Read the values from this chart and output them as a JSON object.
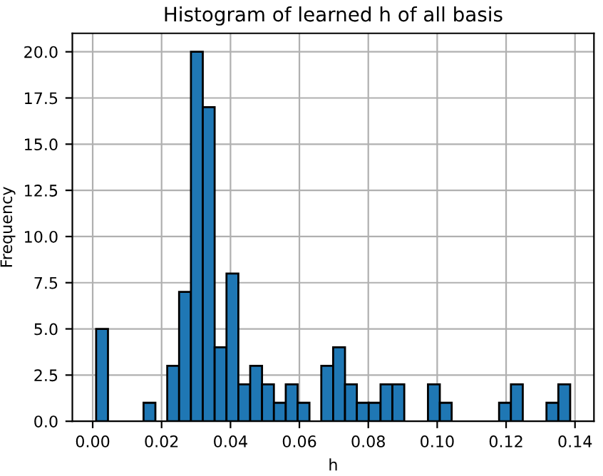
{
  "chart_data": {
    "type": "histogram",
    "title": "Histogram of learned h of all basis",
    "xlabel": "h",
    "ylabel": "Frequency",
    "bins": [
      0.001,
      0.00444,
      0.00788,
      0.01132,
      0.01476,
      0.0182,
      0.02164,
      0.02508,
      0.02852,
      0.03196,
      0.0354,
      0.03884,
      0.04228,
      0.04572,
      0.04916,
      0.0526,
      0.05604,
      0.05948,
      0.06292,
      0.06636,
      0.0698,
      0.07324,
      0.07668,
      0.08012,
      0.08356,
      0.087,
      0.09044,
      0.09388,
      0.09732,
      0.10076,
      0.1042,
      0.10764,
      0.11108,
      0.11452,
      0.11796,
      0.1214,
      0.12484,
      0.12828,
      0.13172,
      0.13516,
      0.1386
    ],
    "values": [
      5,
      0,
      0,
      0,
      1,
      0,
      3,
      7,
      20,
      17,
      4,
      8,
      2,
      3,
      2,
      1,
      2,
      1,
      0,
      3,
      4,
      2,
      1,
      1,
      2,
      2,
      0,
      0,
      2,
      1,
      0,
      0,
      0,
      0,
      1,
      2,
      0,
      0,
      1,
      2
    ],
    "color": "#1f77b4",
    "xlim": [
      -0.0059,
      0.1455
    ],
    "ylim": [
      0,
      21
    ],
    "xticks": [
      {
        "value": 0,
        "label": "0.00"
      },
      {
        "value": 0.02,
        "label": "0.02"
      },
      {
        "value": 0.04,
        "label": "0.04"
      },
      {
        "value": 0.06,
        "label": "0.06"
      },
      {
        "value": 0.08,
        "label": "0.08"
      },
      {
        "value": 0.1,
        "label": "0.10"
      },
      {
        "value": 0.12,
        "label": "0.12"
      },
      {
        "value": 0.14,
        "label": "0.14"
      }
    ],
    "yticks": [
      {
        "value": 0,
        "label": "0.0"
      },
      2.5,
      {
        "value": 5,
        "label": "5.0"
      },
      7.5,
      {
        "value": 10,
        "label": "10.0"
      },
      12.5,
      {
        "value": 15,
        "label": "15.0"
      },
      17.5,
      {
        "value": 20,
        "label": "20.0"
      }
    ],
    "grid": true
  }
}
